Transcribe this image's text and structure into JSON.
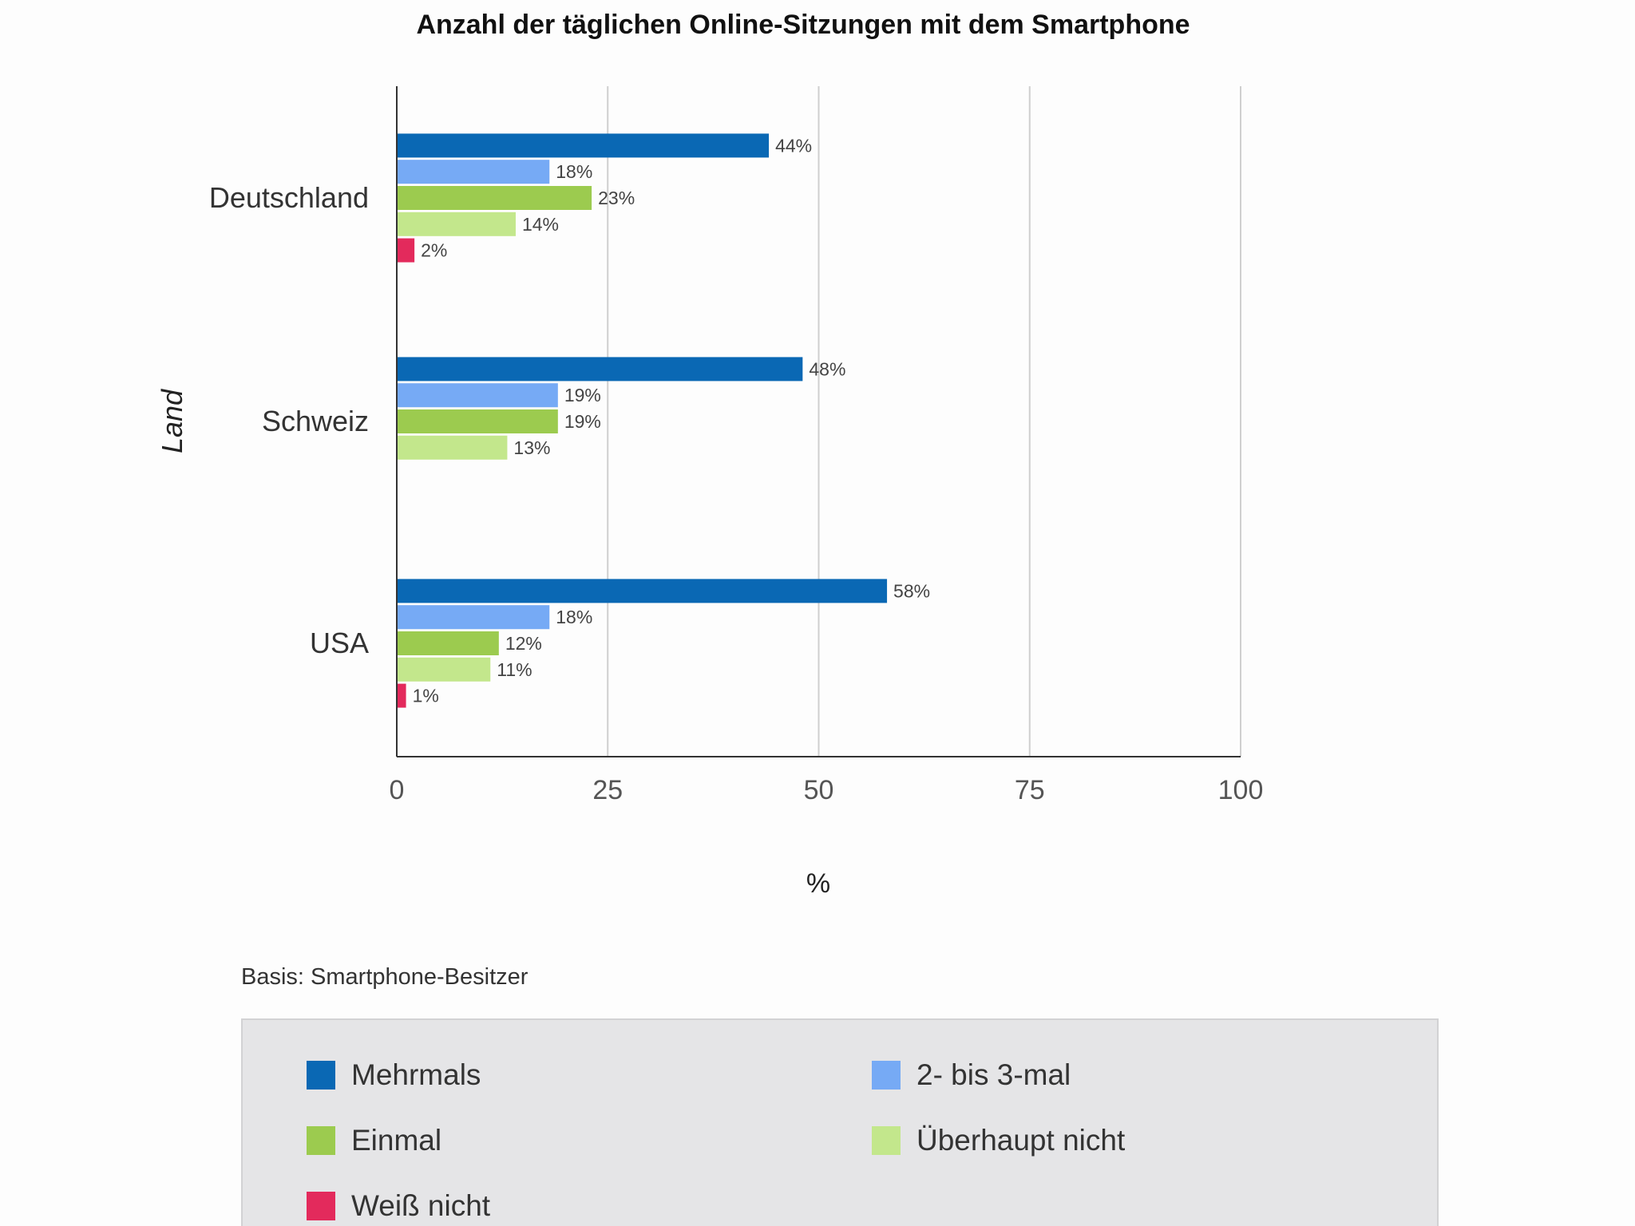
{
  "chart_data": {
    "type": "bar",
    "orientation": "horizontal",
    "title": "Anzahl der täglichen Online-Sitzungen mit dem Smartphone",
    "xlabel": "%",
    "ylabel": "Land",
    "xlim": [
      0,
      100
    ],
    "xticks": [
      "0",
      "25",
      "50",
      "75",
      "100"
    ],
    "categories": [
      "Deutschland",
      "Schweiz",
      "USA"
    ],
    "series": [
      {
        "name": "Mehrmals",
        "color": "#0a68b4",
        "values": [
          44,
          48,
          58
        ],
        "labels": [
          "44%",
          "48%",
          "58%"
        ]
      },
      {
        "name": "2- bis 3-mal",
        "color": "#76aaf5",
        "values": [
          18,
          19,
          18
        ],
        "labels": [
          "18%",
          "19%",
          "18%"
        ]
      },
      {
        "name": "Einmal",
        "color": "#9ccb4f",
        "values": [
          23,
          19,
          12
        ],
        "labels": [
          "23%",
          "19%",
          "12%"
        ]
      },
      {
        "name": "Überhaupt nicht",
        "color": "#c3e78c",
        "values": [
          14,
          13,
          11
        ],
        "labels": [
          "14%",
          "13%",
          "11%"
        ]
      },
      {
        "name": "Weiß nicht",
        "color": "#e32a5c",
        "values": [
          2,
          null,
          1
        ],
        "labels": [
          "2%",
          null,
          "1%"
        ]
      }
    ],
    "grid": true,
    "legend_position": "bottom"
  },
  "note": "Basis: Smartphone-Besitzer"
}
